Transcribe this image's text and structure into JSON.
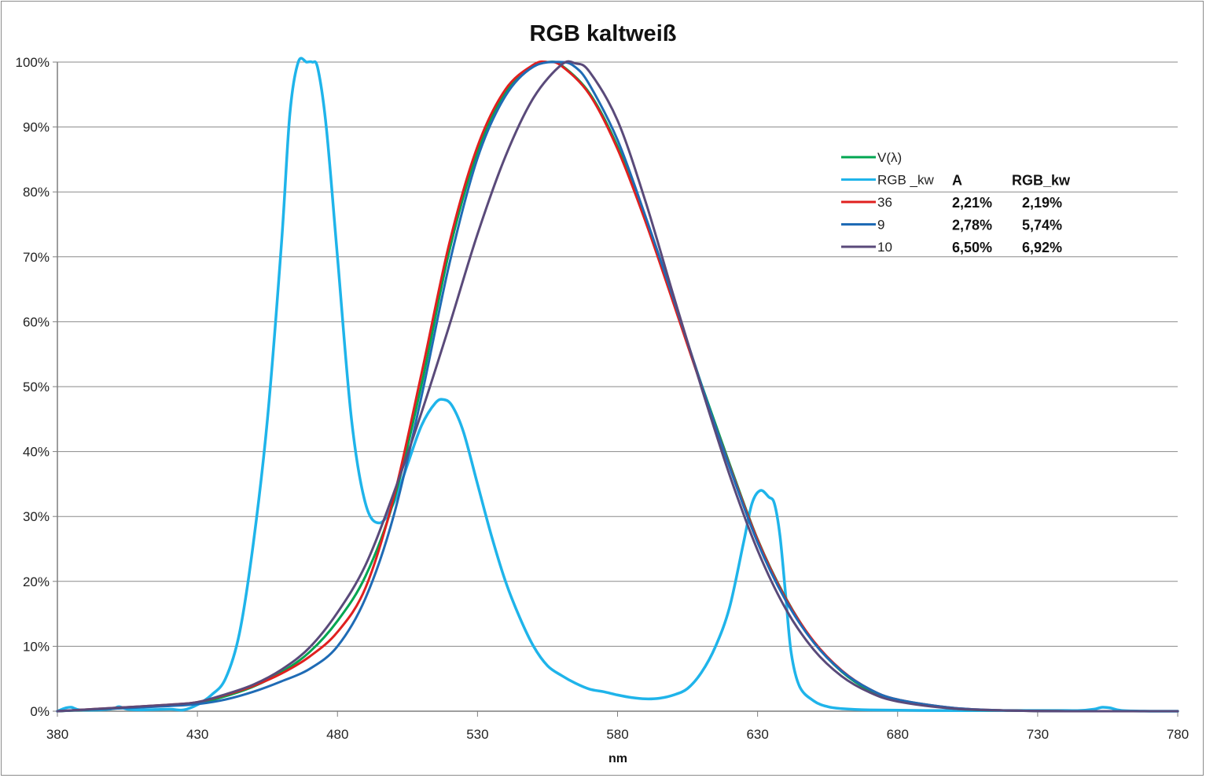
{
  "chart_data": {
    "type": "line",
    "title": "RGB kaltweiß",
    "xlabel": "nm",
    "ylabel": "",
    "xlim": [
      380,
      780
    ],
    "ylim": [
      0,
      100
    ],
    "x_ticks": [
      380,
      430,
      480,
      530,
      580,
      630,
      680,
      730,
      780
    ],
    "x_tick_labels": [
      "380",
      "430",
      "480",
      "530",
      "580",
      "630",
      "680",
      "730",
      "780"
    ],
    "y_ticks": [
      0,
      10,
      20,
      30,
      40,
      50,
      60,
      70,
      80,
      90,
      100
    ],
    "y_tick_labels": [
      "0%",
      "10%",
      "20%",
      "30%",
      "40%",
      "50%",
      "60%",
      "70%",
      "80%",
      "90%",
      "100%"
    ],
    "grid": "horizontal",
    "legend_position": "right",
    "series": [
      {
        "name": "V(λ)",
        "color": "#00a651",
        "x": [
          380,
          400,
          420,
          430,
          440,
          450,
          460,
          470,
          480,
          490,
          500,
          510,
          520,
          530,
          540,
          550,
          555,
          560,
          570,
          580,
          590,
          600,
          610,
          620,
          630,
          640,
          650,
          660,
          670,
          680,
          700,
          720,
          740,
          760,
          780
        ],
        "y": [
          0,
          0.4,
          0.9,
          1.2,
          2.3,
          3.8,
          6.0,
          9.1,
          13.9,
          20.8,
          32.3,
          50.3,
          71.0,
          86.2,
          95.4,
          99.5,
          100,
          99.5,
          95.2,
          87.0,
          75.7,
          63.1,
          50.3,
          38.1,
          26.5,
          17.5,
          10.7,
          6.1,
          3.2,
          1.7,
          0.4,
          0.1,
          0,
          0,
          0
        ]
      },
      {
        "name": "RGB _kw",
        "color": "#1fb4ea",
        "x": [
          380,
          383,
          385,
          388,
          395,
          400,
          402,
          405,
          410,
          420,
          425,
          430,
          435,
          440,
          445,
          450,
          455,
          460,
          463,
          466,
          469,
          471,
          473,
          476,
          480,
          485,
          490,
          495,
          500,
          505,
          510,
          515,
          518,
          521,
          525,
          530,
          535,
          540,
          545,
          550,
          555,
          560,
          565,
          570,
          575,
          580,
          585,
          590,
          595,
          600,
          605,
          610,
          615,
          620,
          625,
          628,
          631,
          634,
          636,
          638,
          640,
          642,
          645,
          650,
          655,
          660,
          670,
          690,
          720,
          730,
          740,
          745,
          750,
          753,
          756,
          760,
          770,
          780
        ],
        "y": [
          0,
          0.5,
          0.6,
          0.2,
          0.2,
          0.4,
          0.7,
          0.3,
          0.2,
          0.3,
          0.2,
          1.0,
          2.5,
          5,
          12,
          26,
          45,
          72,
          92,
          100,
          100,
          100,
          99,
          90,
          70,
          45,
          32,
          29,
          32,
          38,
          44,
          47.5,
          48,
          47,
          43,
          35,
          27,
          20,
          14.5,
          10,
          7,
          5.5,
          4.3,
          3.4,
          3.0,
          2.5,
          2.1,
          1.9,
          2.0,
          2.5,
          3.5,
          6,
          10,
          16,
          26,
          32,
          34,
          33,
          32,
          27,
          18,
          9,
          3.8,
          1.6,
          0.7,
          0.4,
          0.2,
          0.1,
          0.1,
          0.1,
          0.1,
          0.1,
          0.3,
          0.6,
          0.5,
          0.1,
          0,
          0
        ]
      },
      {
        "name": "36",
        "color": "#e0201f",
        "x": [
          380,
          400,
          420,
          430,
          440,
          450,
          460,
          470,
          480,
          490,
          500,
          510,
          520,
          530,
          540,
          550,
          555,
          560,
          570,
          580,
          590,
          600,
          610,
          620,
          630,
          640,
          650,
          660,
          670,
          680,
          700,
          720,
          740,
          760,
          780
        ],
        "y": [
          0,
          0.5,
          1.0,
          1.4,
          2.5,
          3.9,
          5.8,
          8.4,
          12.2,
          19.0,
          32.8,
          52.0,
          72.2,
          87.0,
          95.8,
          99.6,
          100,
          99.4,
          95.0,
          86.6,
          75.4,
          62.8,
          50.0,
          37.8,
          26.4,
          17.4,
          10.8,
          6.3,
          3.4,
          1.8,
          0.5,
          0.1,
          0,
          0,
          0
        ]
      },
      {
        "name": "9",
        "color": "#1f6bb5",
        "x": [
          380,
          400,
          420,
          430,
          440,
          450,
          460,
          470,
          480,
          490,
          500,
          510,
          520,
          530,
          540,
          550,
          560,
          565,
          570,
          580,
          590,
          600,
          610,
          620,
          630,
          640,
          650,
          660,
          670,
          680,
          700,
          720,
          740,
          760,
          780
        ],
        "y": [
          0,
          0.4,
          0.8,
          1.1,
          1.8,
          3.0,
          4.6,
          6.5,
          10.0,
          17.4,
          30.0,
          48.5,
          69.0,
          85.2,
          94.8,
          99.3,
          100,
          99.2,
          96.5,
          88.0,
          76.2,
          63.5,
          50.2,
          37.6,
          26.0,
          17.1,
          10.6,
          6.2,
          3.4,
          1.8,
          0.5,
          0.1,
          0,
          0,
          0
        ]
      },
      {
        "name": "10",
        "color": "#5a4a7a",
        "x": [
          380,
          400,
          420,
          430,
          440,
          450,
          460,
          470,
          480,
          490,
          500,
          510,
          520,
          530,
          540,
          550,
          560,
          565,
          570,
          580,
          590,
          600,
          610,
          620,
          630,
          640,
          650,
          660,
          670,
          680,
          700,
          720,
          740,
          760,
          780
        ],
        "y": [
          0,
          0.5,
          1.0,
          1.4,
          2.6,
          4.1,
          6.4,
          9.8,
          15.2,
          22.5,
          33.5,
          46.0,
          59.5,
          73.5,
          85.5,
          94.5,
          99.6,
          99.8,
          98.5,
          91.0,
          78.5,
          64.0,
          49.8,
          36.4,
          24.8,
          15.8,
          9.5,
          5.4,
          2.9,
          1.5,
          0.4,
          0.1,
          0,
          0,
          0
        ]
      }
    ],
    "table": {
      "headers": [
        "A",
        "RGB_kw"
      ],
      "rows": [
        {
          "series": "36",
          "values": [
            "2,21%",
            "2,19%"
          ]
        },
        {
          "series": "9",
          "values": [
            "2,78%",
            "5,74%"
          ]
        },
        {
          "series": "10",
          "values": [
            "6,50%",
            "6,92%"
          ]
        }
      ]
    }
  }
}
